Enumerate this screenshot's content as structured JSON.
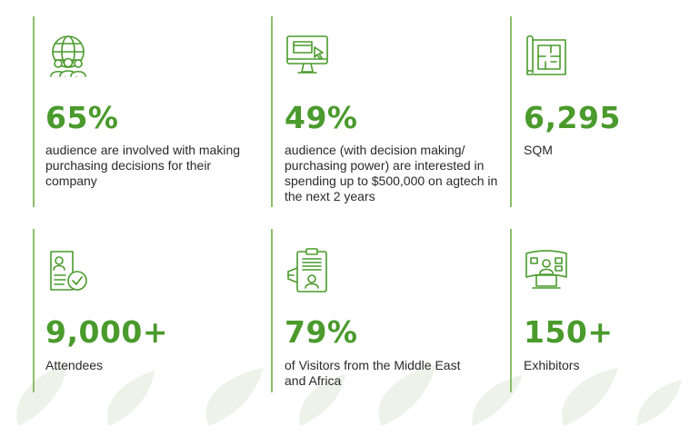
{
  "colors": {
    "accent": "#4a9a2c",
    "divider": "#8cbf6b",
    "text": "#2a2a2a",
    "leaf": "#eef3ea"
  },
  "stats": [
    {
      "icon": "globe-audience-icon",
      "value": "65%",
      "description": "audience are involved with making purchasing decisions for their company"
    },
    {
      "icon": "monitor-cursor-icon",
      "value": "49%",
      "description": "audience (with decision making/ purchasing power) are interested in spending up to $500,000 on agtech in the next 2 years"
    },
    {
      "icon": "floor-plan-icon",
      "value": "6,295",
      "description": "SQM"
    },
    {
      "icon": "attendee-badge-check-icon",
      "value": "9,000+",
      "description": "Attendees"
    },
    {
      "icon": "visitor-id-card-icon",
      "value": "79%",
      "description": "of Visitors from the Middle East and Africa"
    },
    {
      "icon": "exhibitor-booth-icon",
      "value": "150+",
      "description": "Exhibitors"
    }
  ]
}
